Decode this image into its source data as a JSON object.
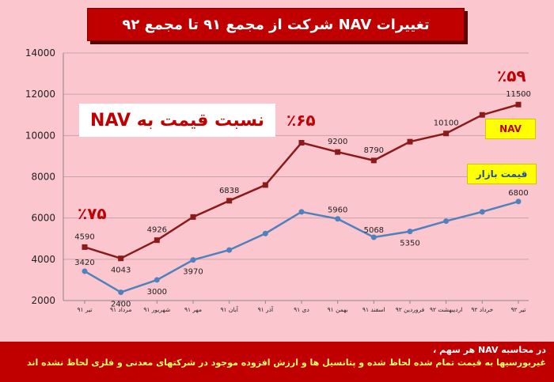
{
  "title": "تغییرات NAV شرکت از  مجمع ۹۱ تا مجمع ۹۲",
  "ratio_label": "نسبت قیمت به NAV",
  "percent_labels": {
    "start": "٪۷۵",
    "middle": "٪۶۵",
    "end": "٪۵۹"
  },
  "legend": {
    "nav": "NAV",
    "market": "قیمت بازار"
  },
  "footer": {
    "line1": "در محاسبه NAV هر سهم ،",
    "line2": "غیربورسیها به قیمت تمام شده لحاظ شده و پتانسیل ها و ارزش افزوده موجود در شرکتهای معدنی و فلزی لحاظ نشده اند"
  },
  "colors": {
    "nav": "#8b1a1a",
    "market": "#4f81bd",
    "accent": "#c00000",
    "highlight": "#ffff00"
  },
  "chart_data": {
    "type": "line",
    "categories": [
      "تیر ۹۱",
      "مرداد ۹۱",
      "شهریور ۹۱",
      "مهر ۹۱",
      "آبان ۹۱",
      "آذر ۹۱",
      "دی ۹۱",
      "بهمن ۹۱",
      "اسفند ۹۱",
      "فروردین ۹۲",
      "اردیبهشت ۹۲",
      "خرداد ۹۲",
      "تیر ۹۲"
    ],
    "series": [
      {
        "name": "NAV",
        "values": [
          4590,
          4043,
          4926,
          6050,
          6838,
          7600,
          9650,
          9200,
          8790,
          9700,
          10100,
          11000,
          11500
        ],
        "labels": [
          "4590",
          "4043",
          "4926",
          "",
          "6838",
          "",
          "",
          "9200",
          "8790",
          "",
          "10100",
          "",
          "11500"
        ]
      },
      {
        "name": "قیمت بازار",
        "values": [
          3420,
          2400,
          3000,
          3970,
          4450,
          5250,
          6300,
          5960,
          5068,
          5350,
          5850,
          6300,
          6800
        ],
        "labels": [
          "3420",
          "2400",
          "3000",
          "3970",
          "",
          "",
          "",
          "5960",
          "5068",
          "5350",
          "",
          "",
          "6800"
        ]
      }
    ],
    "yticks": [
      2000,
      4000,
      6000,
      8000,
      10000,
      12000,
      14000
    ],
    "ylim": [
      2000,
      14000
    ],
    "grid": true
  }
}
